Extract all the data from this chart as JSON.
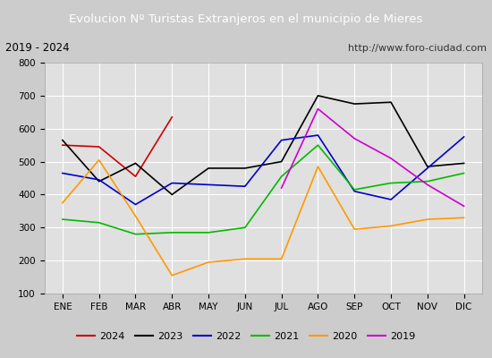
{
  "title": "Evolucion Nº Turistas Extranjeros en el municipio de Mieres",
  "subtitle_left": "2019 - 2024",
  "subtitle_right": "http://www.foro-ciudad.com",
  "months": [
    "ENE",
    "FEB",
    "MAR",
    "ABR",
    "MAY",
    "JUN",
    "JUL",
    "AGO",
    "SEP",
    "OCT",
    "NOV",
    "DIC"
  ],
  "ylim": [
    100,
    800
  ],
  "yticks": [
    100,
    200,
    300,
    400,
    500,
    600,
    700,
    800
  ],
  "series": {
    "2024": {
      "color": "#cc0000",
      "data": [
        550,
        545,
        455,
        635,
        null,
        null,
        null,
        null,
        null,
        null,
        null,
        null
      ]
    },
    "2023": {
      "color": "#000000",
      "data": [
        565,
        440,
        495,
        400,
        480,
        480,
        500,
        700,
        675,
        680,
        485,
        495
      ]
    },
    "2022": {
      "color": "#0000cc",
      "data": [
        465,
        445,
        370,
        435,
        430,
        425,
        565,
        580,
        410,
        385,
        480,
        575
      ]
    },
    "2021": {
      "color": "#00bb00",
      "data": [
        325,
        315,
        280,
        285,
        285,
        300,
        455,
        550,
        415,
        435,
        440,
        465
      ]
    },
    "2020": {
      "color": "#ff9900",
      "data": [
        375,
        505,
        335,
        155,
        195,
        205,
        205,
        485,
        295,
        305,
        325,
        330
      ]
    },
    "2019": {
      "color": "#cc00cc",
      "data": [
        null,
        null,
        null,
        null,
        null,
        null,
        420,
        660,
        570,
        510,
        430,
        365
      ]
    }
  },
  "bg_color": "#cccccc",
  "plot_bg_color": "#e0e0e0",
  "title_bg_color": "#4477bb",
  "title_color": "#ffffff",
  "grid_color": "#ffffff",
  "subtitle_box_color": "#f0f0f0",
  "legend_order": [
    "2024",
    "2023",
    "2022",
    "2021",
    "2020",
    "2019"
  ]
}
